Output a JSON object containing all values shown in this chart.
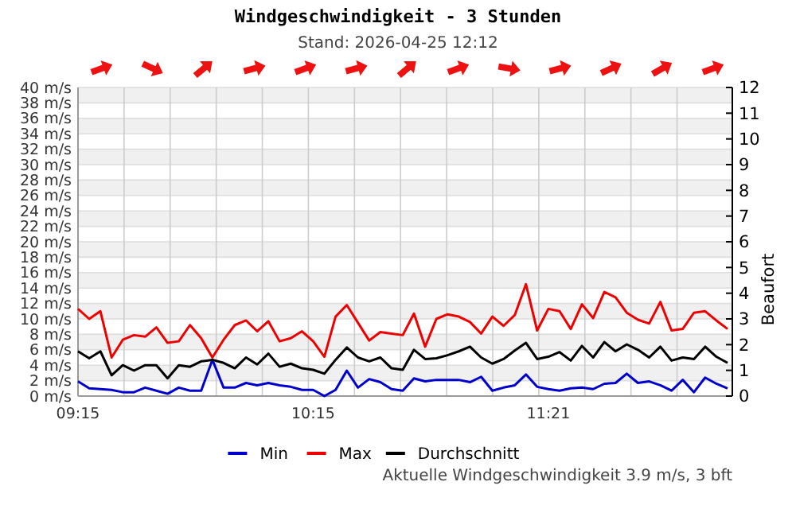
{
  "chart_data": {
    "type": "line",
    "title": "Windgeschwindigkeit - 3 Stunden",
    "subtitle": "Stand: 2026-04-25 12:12",
    "y2label": "Beaufort",
    "categories": [
      "09:15",
      null,
      null,
      null,
      null,
      null,
      null,
      null,
      null,
      null,
      null,
      null,
      null,
      null,
      null,
      null,
      null,
      null,
      null,
      null,
      null,
      "10:15",
      null,
      null,
      null,
      null,
      null,
      null,
      null,
      null,
      null,
      null,
      null,
      null,
      null,
      null,
      null,
      null,
      null,
      null,
      null,
      null,
      "11:21",
      null,
      null,
      null,
      null,
      null,
      null,
      null,
      null,
      null,
      null,
      null,
      null,
      null,
      null,
      null,
      null
    ],
    "series": [
      {
        "name": "Min",
        "color": "#0000cc",
        "values": [
          1.9,
          1.0,
          0.9,
          0.8,
          0.5,
          0.5,
          1.1,
          0.7,
          0.3,
          1.1,
          0.7,
          0.7,
          4.7,
          1.1,
          1.1,
          1.7,
          1.4,
          1.7,
          1.4,
          1.2,
          0.8,
          0.8,
          0,
          0.8,
          3.3,
          1.1,
          2.2,
          1.8,
          0.9,
          0.7,
          2.3,
          1.9,
          2.1,
          2.1,
          2.1,
          1.8,
          2.5,
          0.7,
          1.1,
          1.4,
          2.8,
          1.2,
          0.9,
          0.7,
          1.0,
          1.1,
          0.9,
          1.6,
          1.7,
          2.9,
          1.7,
          1.9,
          1.4,
          0.7,
          2.1,
          0.5,
          2.4,
          1.6,
          1.0
        ]
      },
      {
        "name": "Max",
        "color": "#ee0000",
        "values": [
          11.3,
          10.0,
          11.0,
          5.0,
          7.3,
          7.9,
          7.7,
          8.9,
          6.9,
          7.1,
          9.2,
          7.5,
          5.0,
          7.3,
          9.2,
          9.8,
          8.4,
          9.7,
          7.1,
          7.5,
          8.4,
          7.1,
          5.1,
          10.3,
          11.8,
          9.5,
          7.2,
          8.3,
          8.1,
          7.9,
          10.7,
          6.4,
          10.0,
          10.6,
          10.3,
          9.6,
          8.1,
          10.3,
          9.1,
          10.5,
          14.5,
          8.5,
          11.3,
          11.0,
          8.7,
          11.9,
          10.1,
          13.5,
          12.8,
          10.8,
          9.9,
          9.4,
          12.2,
          8.5,
          8.7,
          10.8,
          11.0,
          9.8,
          8.7
        ]
      },
      {
        "name": "Durchschnitt",
        "color": "#000000",
        "values": [
          5.8,
          4.9,
          5.8,
          2.7,
          4.0,
          3.3,
          4.0,
          4.0,
          2.3,
          4.0,
          3.8,
          4.5,
          4.7,
          4.3,
          3.6,
          5.0,
          4.1,
          5.5,
          3.8,
          4.2,
          3.6,
          3.4,
          2.9,
          4.7,
          6.3,
          5.0,
          4.5,
          5.0,
          3.6,
          3.4,
          6.0,
          4.8,
          4.9,
          5.3,
          5.8,
          6.4,
          5.0,
          4.2,
          4.8,
          5.9,
          6.9,
          4.8,
          5.1,
          5.7,
          4.6,
          6.5,
          5.0,
          7.0,
          5.8,
          6.7,
          6.0,
          5.0,
          6.4,
          4.6,
          5.0,
          4.8,
          6.4,
          5.1,
          4.3
        ]
      }
    ],
    "ylim": [
      0,
      40
    ],
    "yticks": [
      {
        "value": 0,
        "label": "0 m/s"
      },
      {
        "value": 2,
        "label": "2 m/s"
      },
      {
        "value": 4,
        "label": "4 m/s"
      },
      {
        "value": 6,
        "label": "6 m/s"
      },
      {
        "value": 8,
        "label": "8 m/s"
      },
      {
        "value": 10,
        "label": "10 m/s"
      },
      {
        "value": 12,
        "label": "12 m/s"
      },
      {
        "value": 14,
        "label": "14 m/s"
      },
      {
        "value": 16,
        "label": "16 m/s"
      },
      {
        "value": 18,
        "label": "18 m/s"
      },
      {
        "value": 20,
        "label": "20 m/s"
      },
      {
        "value": 22,
        "label": "22 m/s"
      },
      {
        "value": 24,
        "label": "24 m/s"
      },
      {
        "value": 26,
        "label": "26 m/s"
      },
      {
        "value": 28,
        "label": "28 m/s"
      },
      {
        "value": 30,
        "label": "30 m/s"
      },
      {
        "value": 32,
        "label": "32 m/s"
      },
      {
        "value": 34,
        "label": "34 m/s"
      },
      {
        "value": 36,
        "label": "36 m/s"
      },
      {
        "value": 38,
        "label": "38 m/s"
      },
      {
        "value": 40,
        "label": "40 m/s"
      }
    ],
    "y2lim": [
      0,
      12
    ],
    "y2ticks": [
      0,
      1,
      2,
      3,
      4,
      5,
      6,
      7,
      8,
      9,
      10,
      11,
      12
    ],
    "grid": true,
    "legend": "bottom",
    "marker": "none",
    "line_style": "solid",
    "annotations": [
      "Aktuelle Windgeschwindigkeit 3.9 m/s, 3 bft"
    ]
  }
}
